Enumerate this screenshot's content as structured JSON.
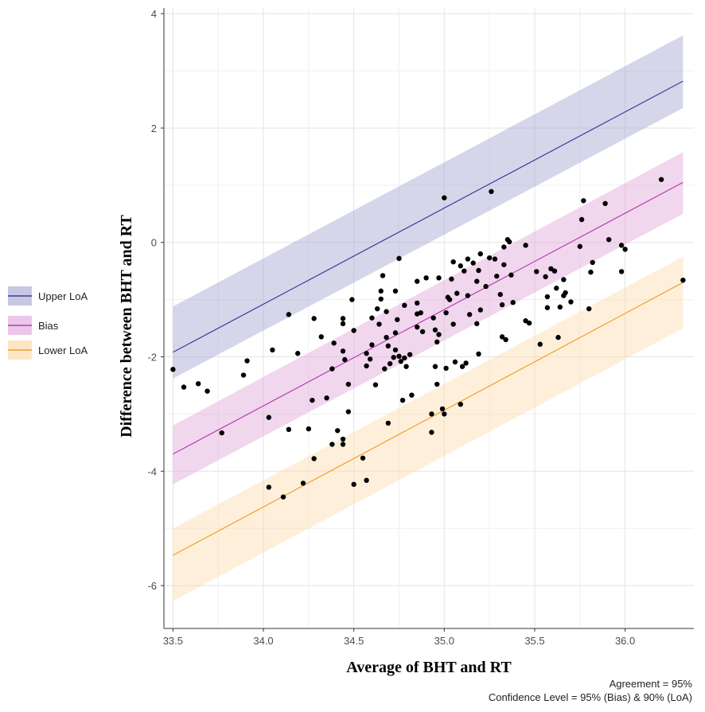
{
  "chart_data": {
    "type": "scatter",
    "title": "",
    "xlabel": "Average of BHT and RT",
    "ylabel": "Difference between BHT and RT",
    "xlim": [
      33.45,
      36.38
    ],
    "ylim": [
      -6.75,
      4.1
    ],
    "x_ticks": [
      "33.5",
      "34.0",
      "34.5",
      "35.0",
      "35.5",
      "36.0"
    ],
    "x_tick_values": [
      33.5,
      34.0,
      34.5,
      35.0,
      35.5,
      36.0
    ],
    "y_ticks": [
      "-6",
      "-4",
      "-2",
      "0",
      "2",
      "4"
    ],
    "y_tick_values": [
      -6,
      -4,
      -2,
      0,
      2,
      4
    ],
    "grid": true,
    "legend_position": "left",
    "bands": [
      {
        "name": "Upper LoA",
        "color": "#3b3b9e",
        "fill": "#9d9dcc",
        "x": [
          33.5,
          36.32
        ],
        "line": [
          -1.92,
          2.82
        ],
        "lower": [
          -2.38,
          2.35
        ],
        "upper": [
          -1.12,
          3.62
        ]
      },
      {
        "name": "Bias",
        "color": "#b83cb0",
        "fill": "#dda0d6",
        "x": [
          33.5,
          36.32
        ],
        "line": [
          -3.7,
          1.05
        ],
        "lower": [
          -4.23,
          0.5
        ],
        "upper": [
          -3.2,
          1.58
        ]
      },
      {
        "name": "Lower LoA",
        "color": "#f0a030",
        "fill": "#fcd9a6",
        "x": [
          33.5,
          36.32
        ],
        "line": [
          -5.47,
          -0.7
        ],
        "lower": [
          -6.27,
          -1.5
        ],
        "upper": [
          -5.0,
          -0.25
        ]
      }
    ],
    "points": [
      [
        33.5,
        -2.22
      ],
      [
        33.56,
        -2.53
      ],
      [
        33.64,
        -2.47
      ],
      [
        33.69,
        -2.6
      ],
      [
        33.77,
        -3.33
      ],
      [
        33.89,
        -2.32
      ],
      [
        33.91,
        -2.07
      ],
      [
        34.03,
        -3.06
      ],
      [
        34.03,
        -4.28
      ],
      [
        34.05,
        -1.88
      ],
      [
        34.11,
        -4.45
      ],
      [
        34.14,
        -1.26
      ],
      [
        34.14,
        -3.27
      ],
      [
        34.19,
        -1.94
      ],
      [
        34.22,
        -4.21
      ],
      [
        34.25,
        -3.26
      ],
      [
        34.27,
        -2.76
      ],
      [
        34.28,
        -3.78
      ],
      [
        34.28,
        -1.33
      ],
      [
        34.32,
        -1.65
      ],
      [
        34.35,
        -2.72
      ],
      [
        34.38,
        -3.53
      ],
      [
        34.38,
        -2.21
      ],
      [
        34.39,
        -1.76
      ],
      [
        34.41,
        -3.29
      ],
      [
        34.44,
        -3.53
      ],
      [
        34.44,
        -3.44
      ],
      [
        34.44,
        -1.33
      ],
      [
        34.44,
        -1.42
      ],
      [
        34.44,
        -1.9
      ],
      [
        34.45,
        -2.05
      ],
      [
        34.47,
        -2.96
      ],
      [
        34.47,
        -2.48
      ],
      [
        34.49,
        -1.0
      ],
      [
        34.5,
        -4.23
      ],
      [
        34.5,
        -1.54
      ],
      [
        34.55,
        -3.77
      ],
      [
        34.57,
        -2.16
      ],
      [
        34.57,
        -4.16
      ],
      [
        34.57,
        -1.94
      ],
      [
        34.59,
        -2.04
      ],
      [
        34.6,
        -1.79
      ],
      [
        34.6,
        -1.32
      ],
      [
        34.62,
        -2.49
      ],
      [
        34.63,
        -1.16
      ],
      [
        34.64,
        -1.43
      ],
      [
        34.65,
        -0.85
      ],
      [
        34.65,
        -0.99
      ],
      [
        34.66,
        -0.58
      ],
      [
        34.67,
        -2.21
      ],
      [
        34.68,
        -1.66
      ],
      [
        34.68,
        -1.21
      ],
      [
        34.69,
        -3.16
      ],
      [
        34.69,
        -1.81
      ],
      [
        34.7,
        -2.12
      ],
      [
        34.72,
        -2.01
      ],
      [
        34.73,
        -1.58
      ],
      [
        34.73,
        -0.85
      ],
      [
        34.73,
        -1.88
      ],
      [
        34.74,
        -1.35
      ],
      [
        34.75,
        -0.28
      ],
      [
        34.75,
        -1.99
      ],
      [
        34.76,
        -2.08
      ],
      [
        34.77,
        -2.76
      ],
      [
        34.78,
        -1.1
      ],
      [
        34.78,
        -2.02
      ],
      [
        34.79,
        -2.17
      ],
      [
        34.81,
        -1.96
      ],
      [
        34.82,
        -2.67
      ],
      [
        34.85,
        -1.06
      ],
      [
        34.85,
        -1.25
      ],
      [
        34.85,
        -0.68
      ],
      [
        34.85,
        -1.48
      ],
      [
        34.87,
        -1.23
      ],
      [
        34.88,
        -1.56
      ],
      [
        34.9,
        -0.62
      ],
      [
        34.93,
        -3.0
      ],
      [
        34.93,
        -3.32
      ],
      [
        34.94,
        -1.32
      ],
      [
        34.95,
        -1.53
      ],
      [
        34.95,
        -2.17
      ],
      [
        34.96,
        -2.48
      ],
      [
        34.96,
        -1.74
      ],
      [
        34.97,
        -0.62
      ],
      [
        34.97,
        -1.61
      ],
      [
        34.99,
        -2.91
      ],
      [
        35.0,
        -3.0
      ],
      [
        35.0,
        0.78
      ],
      [
        35.01,
        -2.2
      ],
      [
        35.01,
        -1.23
      ],
      [
        35.02,
        -0.96
      ],
      [
        35.03,
        -1.0
      ],
      [
        35.04,
        -0.64
      ],
      [
        35.05,
        -0.34
      ],
      [
        35.05,
        -1.43
      ],
      [
        35.06,
        -2.09
      ],
      [
        35.07,
        -0.89
      ],
      [
        35.09,
        -2.83
      ],
      [
        35.09,
        -0.41
      ],
      [
        35.1,
        -2.17
      ],
      [
        35.11,
        -0.5
      ],
      [
        35.12,
        -2.11
      ],
      [
        35.13,
        -0.29
      ],
      [
        35.13,
        -0.93
      ],
      [
        35.14,
        -1.26
      ],
      [
        35.16,
        -0.36
      ],
      [
        35.18,
        -0.68
      ],
      [
        35.18,
        -1.42
      ],
      [
        35.19,
        -0.49
      ],
      [
        35.19,
        -1.95
      ],
      [
        35.2,
        -0.2
      ],
      [
        35.2,
        -1.18
      ],
      [
        35.23,
        -0.77
      ],
      [
        35.25,
        -0.27
      ],
      [
        35.26,
        0.89
      ],
      [
        35.28,
        -0.29
      ],
      [
        35.29,
        -0.59
      ],
      [
        35.31,
        -0.91
      ],
      [
        35.32,
        -1.09
      ],
      [
        35.32,
        -1.65
      ],
      [
        35.33,
        -0.08
      ],
      [
        35.33,
        -0.39
      ],
      [
        35.34,
        -1.7
      ],
      [
        35.35,
        0.05
      ],
      [
        35.36,
        0.01
      ],
      [
        35.37,
        -0.57
      ],
      [
        35.38,
        -1.05
      ],
      [
        35.45,
        -1.37
      ],
      [
        35.45,
        -0.05
      ],
      [
        35.47,
        -1.41
      ],
      [
        35.51,
        -0.51
      ],
      [
        35.53,
        -1.78
      ],
      [
        35.56,
        -0.6
      ],
      [
        35.57,
        -1.14
      ],
      [
        35.57,
        -0.95
      ],
      [
        35.59,
        -0.46
      ],
      [
        35.61,
        -0.5
      ],
      [
        35.62,
        -0.8
      ],
      [
        35.63,
        -1.66
      ],
      [
        35.64,
        -1.13
      ],
      [
        35.66,
        -0.65
      ],
      [
        35.66,
        -0.93
      ],
      [
        35.67,
        -0.88
      ],
      [
        35.7,
        -1.04
      ],
      [
        35.75,
        -0.07
      ],
      [
        35.76,
        0.4
      ],
      [
        35.77,
        0.73
      ],
      [
        35.8,
        -1.16
      ],
      [
        35.81,
        -0.52
      ],
      [
        35.82,
        -0.35
      ],
      [
        35.89,
        0.68
      ],
      [
        35.91,
        0.05
      ],
      [
        35.98,
        -0.05
      ],
      [
        35.98,
        -0.51
      ],
      [
        36.0,
        -0.12
      ],
      [
        36.2,
        1.1
      ],
      [
        36.32,
        -0.66
      ]
    ]
  },
  "legend": {
    "items": [
      {
        "label": "Upper LoA",
        "line_color": "#3b3b9e",
        "fill_color": "#c7c7e3"
      },
      {
        "label": "Bias",
        "line_color": "#b83cb0",
        "fill_color": "#ecc6e8"
      },
      {
        "label": "Lower LoA",
        "line_color": "#f0a030",
        "fill_color": "#fde6c6"
      }
    ]
  },
  "caption": {
    "agreement": "Agreement = 95%",
    "confidence": "Confidence Level = 95% (Bias) & 90% (LoA)"
  }
}
